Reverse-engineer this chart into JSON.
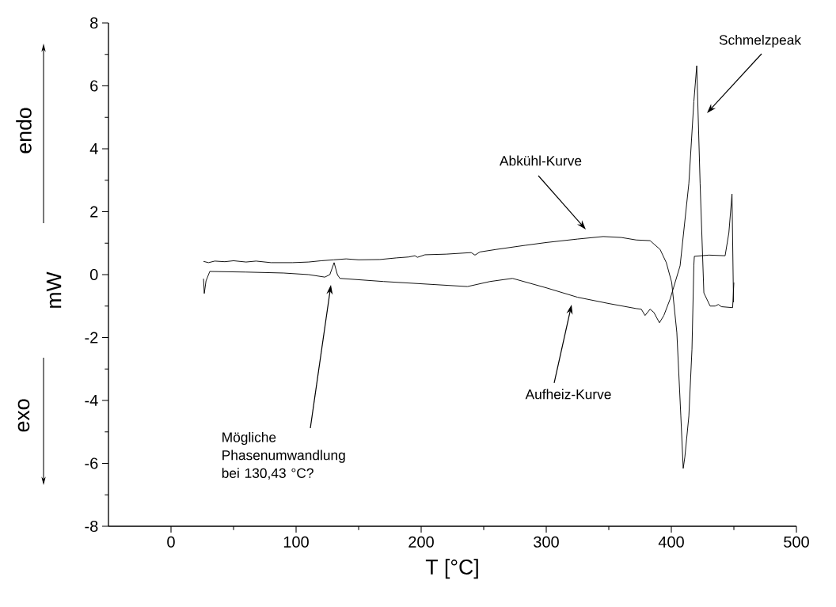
{
  "chart_data": {
    "type": "line",
    "xlabel": "T [°C]",
    "ylabel": "mW",
    "xlim": [
      -50,
      500
    ],
    "xticks": [
      0,
      100,
      200,
      300,
      400,
      500
    ],
    "ylim": [
      -8,
      8
    ],
    "yticks": [
      -8,
      -6,
      -4,
      -2,
      0,
      2,
      4,
      6,
      8
    ],
    "grid": false,
    "line_style": "solid",
    "annotations": [
      "endo",
      "exo",
      "Schmelzpeak",
      "Abkühl-Kurve",
      "Aufheiz-Kurve",
      "Mögliche Phasenumwandlung bei 130,43 °C?"
    ],
    "series": [
      {
        "color": "#000000",
        "x": [
          26,
          26.6,
          28,
          31,
          60,
          90,
          110,
          123,
          127,
          130.4,
          133,
          135,
          170,
          237,
          255,
          273,
          300,
          325,
          350,
          372,
          376,
          379,
          383,
          386,
          390.5,
          394,
          399,
          407,
          414,
          418,
          420.3,
          423,
          426,
          431,
          435,
          437.6,
          440,
          449,
          450
        ],
        "values": [
          -0.13,
          -0.6,
          -0.2,
          0.1,
          0.08,
          0.05,
          0,
          -0.08,
          0,
          0.38,
          0,
          -0.12,
          -0.22,
          -0.38,
          -0.22,
          -0.12,
          -0.42,
          -0.72,
          -0.92,
          -1.08,
          -1.1,
          -1.3,
          -1.1,
          -1.2,
          -1.53,
          -1.3,
          -0.78,
          0.28,
          2.9,
          5.5,
          6.64,
          2.9,
          -0.58,
          -1.0,
          -1.0,
          -0.95,
          -1.02,
          -1.05,
          -0.25
        ]
      },
      {
        "color": "#000000",
        "x": [
          26,
          30,
          35,
          43,
          50,
          60,
          68,
          80,
          97,
          110,
          120,
          130,
          140,
          150,
          167,
          180,
          190,
          195,
          197,
          203,
          220,
          240,
          243,
          247,
          260,
          283,
          300,
          325,
          345.6,
          360,
          372,
          383,
          391,
          396,
          400.3,
          404.4,
          407.6,
          409.5,
          410.8,
          414,
          416.5,
          418,
          418.4,
          430,
          443,
          446,
          448.5,
          449.7
        ],
        "values": [
          0.42,
          0.38,
          0.43,
          0.41,
          0.44,
          0.4,
          0.43,
          0.38,
          0.38,
          0.4,
          0.44,
          0.47,
          0.5,
          0.47,
          0.48,
          0.53,
          0.56,
          0.6,
          0.55,
          0.63,
          0.65,
          0.7,
          0.62,
          0.72,
          0.8,
          0.93,
          1.02,
          1.13,
          1.21,
          1.18,
          1.1,
          1.08,
          0.8,
          0.38,
          -0.25,
          -1.84,
          -4.5,
          -6.16,
          -5.8,
          -4.5,
          -2.37,
          0.3,
          0.58,
          0.62,
          0.6,
          1.33,
          2.56,
          -0.88
        ]
      }
    ]
  }
}
